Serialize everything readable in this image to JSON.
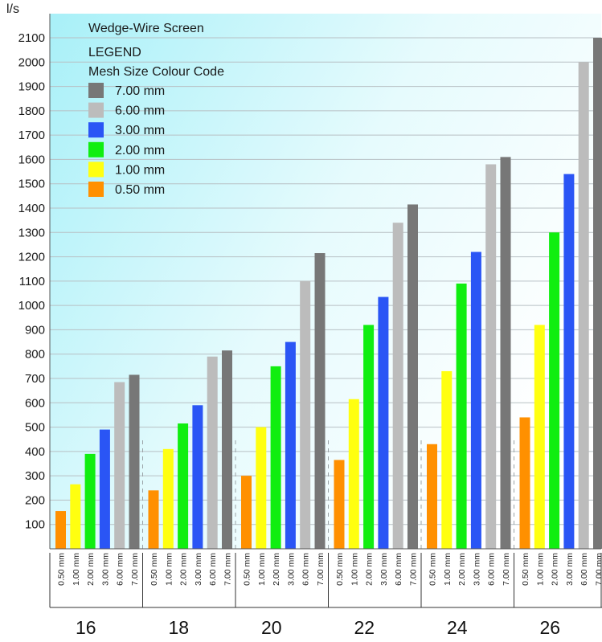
{
  "chart_data": {
    "type": "bar",
    "title": "Wedge-Wire Screen",
    "ylabel": "l/s",
    "ylim": [
      0,
      2100
    ],
    "yticks": [
      100,
      200,
      300,
      400,
      500,
      600,
      700,
      800,
      900,
      1000,
      1100,
      1200,
      1300,
      1400,
      1500,
      1600,
      1700,
      1800,
      1900,
      2000,
      2100
    ],
    "grid": true,
    "legend": {
      "position": "top-left",
      "heading": "LEGEND",
      "subheading": "Mesh Size Colour Code",
      "order": [
        "7.00 mm",
        "6.00 mm",
        "3.00 mm",
        "2.00 mm",
        "1.00 mm",
        "0.50 mm"
      ]
    },
    "groups": [
      "16",
      "18",
      "20",
      "22",
      "24",
      "26"
    ],
    "categories": [
      "0.50 mm",
      "1.00 mm",
      "2.00 mm",
      "3.00 mm",
      "6.00 mm",
      "7.00 mm"
    ],
    "series": [
      {
        "name": "0.50 mm",
        "color": "#ff9000",
        "values": [
          155,
          240,
          300,
          365,
          430,
          540
        ]
      },
      {
        "name": "1.00 mm",
        "color": "#ffff10",
        "values": [
          265,
          410,
          500,
          615,
          730,
          920
        ]
      },
      {
        "name": "2.00 mm",
        "color": "#10ee10",
        "values": [
          390,
          515,
          750,
          920,
          1090,
          1300
        ]
      },
      {
        "name": "3.00 mm",
        "color": "#2a55f5",
        "values": [
          490,
          590,
          850,
          1035,
          1220,
          1540
        ]
      },
      {
        "name": "6.00 mm",
        "color": "#bcbcbc",
        "values": [
          685,
          790,
          1100,
          1340,
          1580,
          2000
        ]
      },
      {
        "name": "7.00 mm",
        "color": "#777777",
        "values": [
          715,
          815,
          1215,
          1415,
          1610,
          2100
        ]
      }
    ]
  }
}
